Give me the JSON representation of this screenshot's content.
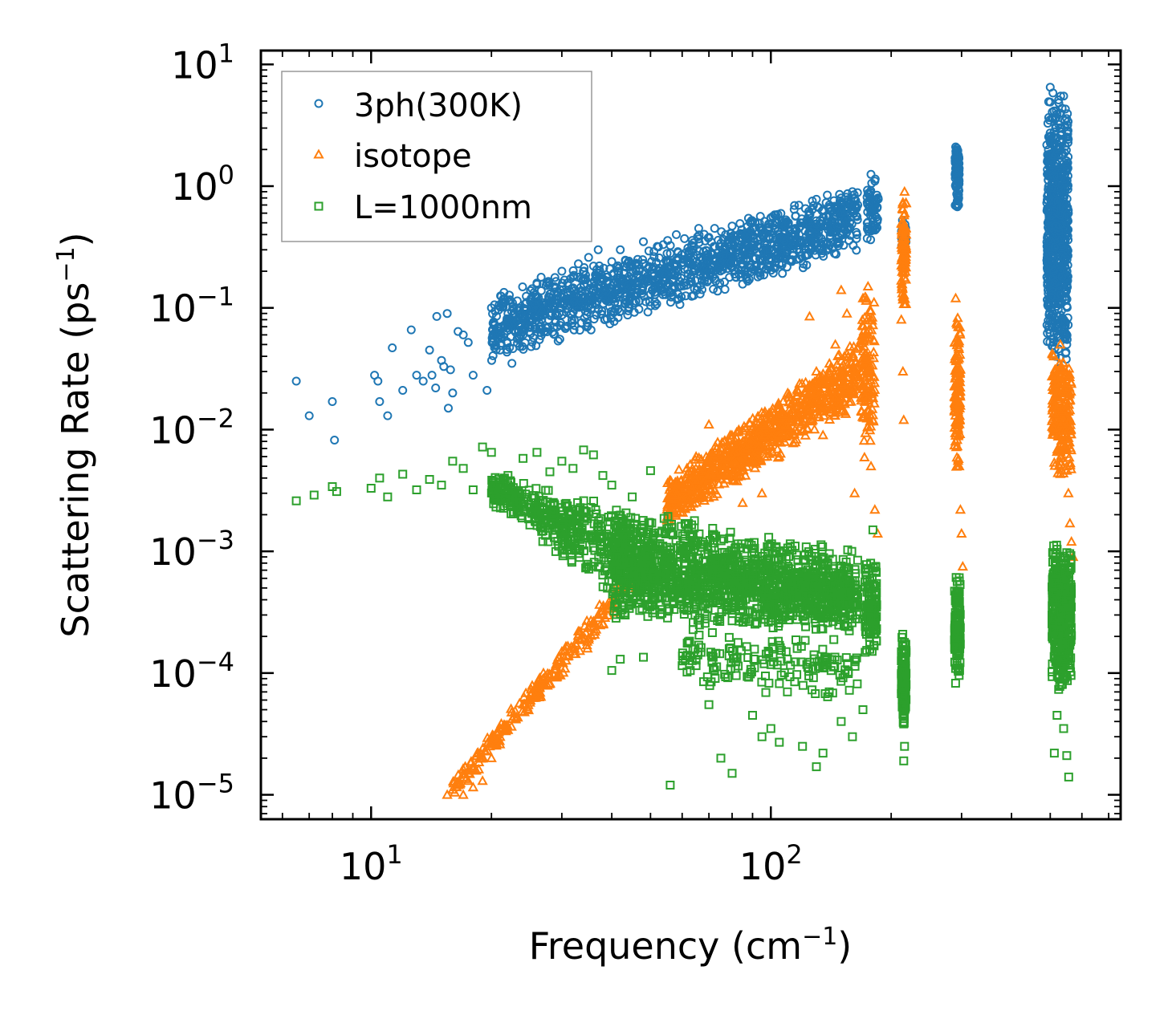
{
  "chart_data": {
    "type": "scatter",
    "title": "",
    "xscale": "log",
    "yscale": "log",
    "xlim": [
      5.3,
      750
    ],
    "ylim": [
      6.3e-06,
      13
    ],
    "xlabel": {
      "text": "Frequency (cm",
      "sup": "−1",
      "close": ")"
    },
    "ylabel": {
      "text": "Scattering Rate (ps",
      "sup": "−1",
      "close": ")"
    },
    "xticks": [
      {
        "value": 10,
        "base": "10",
        "exp": "1"
      },
      {
        "value": 100,
        "base": "10",
        "exp": "2"
      }
    ],
    "yticks": [
      {
        "value": 10,
        "base": "10",
        "exp": "1"
      },
      {
        "value": 1,
        "base": "10",
        "exp": "0"
      },
      {
        "value": 0.1,
        "base": "10",
        "exp": "−1"
      },
      {
        "value": 0.01,
        "base": "10",
        "exp": "−2"
      },
      {
        "value": 0.001,
        "base": "10",
        "exp": "−3"
      },
      {
        "value": 0.0001,
        "base": "10",
        "exp": "−4"
      },
      {
        "value": 1e-05,
        "base": "10",
        "exp": "−5"
      }
    ],
    "legend_position": "top-left",
    "series": [
      {
        "name": "3ph(300K)",
        "marker": "circle",
        "color": "#1f77b4",
        "points": [
          [
            6.5,
            0.025
          ],
          [
            7,
            0.013
          ],
          [
            8,
            0.017
          ],
          [
            8.1,
            0.0082
          ],
          [
            10.2,
            0.028
          ],
          [
            10.4,
            0.025
          ],
          [
            10.5,
            0.017
          ],
          [
            11,
            0.013
          ],
          [
            11.3,
            0.047
          ],
          [
            12,
            0.021
          ],
          [
            12.6,
            0.066
          ],
          [
            13,
            0.028
          ],
          [
            13.5,
            0.025
          ],
          [
            14,
            0.045
          ],
          [
            14.2,
            0.028
          ],
          [
            14.5,
            0.022
          ],
          [
            14.6,
            0.085
          ],
          [
            15,
            0.037
          ],
          [
            15.2,
            0.033
          ],
          [
            15.5,
            0.09
          ],
          [
            15.6,
            0.015
          ],
          [
            15.8,
            0.031
          ],
          [
            16,
            0.02
          ],
          [
            16.5,
            0.064
          ],
          [
            17,
            0.06
          ],
          [
            17.5,
            0.052
          ],
          [
            18,
            0.028
          ],
          [
            19.5,
            0.021
          ],
          [
            20,
            0.1
          ],
          [
            20.5,
            0.06
          ],
          [
            21,
            0.045
          ],
          [
            21.5,
            0.134
          ],
          [
            22,
            0.074
          ],
          [
            22.5,
            0.035
          ],
          [
            23,
            0.063
          ],
          [
            24,
            0.06
          ],
          [
            25,
            0.078
          ],
          [
            26,
            0.16
          ],
          [
            27,
            0.095
          ],
          [
            28,
            0.13
          ],
          [
            29,
            0.165
          ],
          [
            30,
            0.2
          ],
          [
            31,
            0.16
          ],
          [
            32,
            0.18
          ],
          [
            33,
            0.23
          ],
          [
            34,
            0.12
          ],
          [
            35,
            0.26
          ],
          [
            36,
            0.14
          ],
          [
            37,
            0.3
          ],
          [
            38,
            0.17
          ],
          [
            40,
            0.24
          ],
          [
            42,
            0.3
          ],
          [
            45,
            0.22
          ],
          [
            48,
            0.35
          ],
          [
            50,
            0.13
          ],
          [
            52,
            0.32
          ],
          [
            55,
            0.28
          ],
          [
            58,
            0.4
          ],
          [
            62,
            0.31
          ],
          [
            66,
            0.45
          ],
          [
            70,
            0.38
          ],
          [
            75,
            0.34
          ],
          [
            80,
            0.47
          ],
          [
            85,
            0.4
          ],
          [
            90,
            0.51
          ],
          [
            95,
            0.43
          ],
          [
            100,
            0.55
          ],
          [
            105,
            0.4
          ],
          [
            110,
            0.3
          ],
          [
            115,
            0.45
          ],
          [
            120,
            0.5
          ],
          [
            125,
            0.6
          ],
          [
            130,
            0.78
          ],
          [
            135,
            0.55
          ],
          [
            140,
            0.7
          ],
          [
            145,
            0.65
          ],
          [
            150,
            0.8
          ],
          [
            155,
            0.62
          ],
          [
            160,
            0.9
          ],
          [
            165,
            0.7
          ],
          [
            178,
            1.25
          ],
          [
            180,
            0.55
          ],
          [
            182,
            1.1
          ],
          [
            213,
            0.38
          ],
          [
            215,
            0.32
          ],
          [
            290,
            2.1
          ],
          [
            295,
            0.7
          ],
          [
            296,
            1.4
          ],
          [
            500,
            6.5
          ],
          [
            510,
            0.2
          ],
          [
            515,
            0.04
          ],
          [
            520,
            2
          ],
          [
            540,
            5.5
          ],
          [
            550,
            0.05
          ],
          [
            555,
            0.6
          ]
        ],
        "clusters": [
          {
            "x": [
              20,
              165
            ],
            "ymin_at_x0": 0.035,
            "ymax_at_x0": 0.14,
            "ymin_at_x1": 0.28,
            "ymax_at_x1": 1.05,
            "n": 1400
          },
          {
            "x": [
              174,
              186
            ],
            "ymin_at_x0": 0.32,
            "ymax_at_x0": 1.3,
            "ymin_at_x1": 0.32,
            "ymax_at_x1": 1.3,
            "n": 60
          },
          {
            "x": [
              212,
              218
            ],
            "ymin_at_x0": 0.28,
            "ymax_at_x0": 0.55,
            "ymin_at_x1": 0.28,
            "ymax_at_x1": 0.55,
            "n": 25
          },
          {
            "x": [
              289,
              296
            ],
            "ymin_at_x0": 0.6,
            "ymax_at_x0": 2.5,
            "ymin_at_x1": 0.6,
            "ymax_at_x1": 2.5,
            "n": 90
          },
          {
            "x": [
              490,
              555
            ],
            "ymin_at_x0": 0.03,
            "ymax_at_x0": 6.5,
            "ymin_at_x1": 0.03,
            "ymax_at_x1": 6.5,
            "n": 700
          }
        ]
      },
      {
        "name": "isotope",
        "marker": "triangle",
        "color": "#ff7f0e",
        "points": [
          [
            15.5,
            1e-05
          ],
          [
            16,
            1.1e-05
          ],
          [
            16.5,
            1.2e-05
          ],
          [
            17,
            1e-05
          ],
          [
            17.5,
            1.3e-05
          ],
          [
            18,
            1.15e-05
          ],
          [
            19,
            1.3e-05
          ],
          [
            20,
            2e-05
          ],
          [
            21,
            2.6e-05
          ],
          [
            22,
            3.4e-05
          ],
          [
            23,
            4.2e-05
          ],
          [
            25,
            6e-05
          ],
          [
            27,
            9e-05
          ],
          [
            30,
            0.00015
          ],
          [
            33,
            0.00022
          ],
          [
            37,
            0.0003
          ],
          [
            40,
            0.00038
          ],
          [
            45,
            0.00055
          ],
          [
            55,
            0.0018
          ],
          [
            60,
            0.0035
          ],
          [
            65,
            0.006
          ],
          [
            70,
            0.011
          ],
          [
            75,
            0.007
          ],
          [
            78,
            0.0045
          ],
          [
            85,
            0.0025
          ],
          [
            95,
            0.003
          ],
          [
            105,
            0.006
          ],
          [
            110,
            0.009
          ],
          [
            120,
            0.018
          ],
          [
            125,
            0.085
          ],
          [
            130,
            0.03
          ],
          [
            135,
            0.009
          ],
          [
            140,
            0.025
          ],
          [
            145,
            0.05
          ],
          [
            150,
            0.14
          ],
          [
            155,
            0.09
          ],
          [
            160,
            0.04
          ],
          [
            162,
            0.003
          ],
          [
            170,
            0.12
          ],
          [
            175,
            0.15
          ],
          [
            178,
            0.005
          ],
          [
            180,
            0.012
          ],
          [
            182,
            0.0022
          ],
          [
            185,
            0.0014
          ],
          [
            212,
            0.08
          ],
          [
            214,
            0.03
          ],
          [
            215,
            0.012
          ],
          [
            216,
            0.9
          ],
          [
            218,
            0.4
          ],
          [
            290,
            0.12
          ],
          [
            292,
            0.03
          ],
          [
            294,
            0.01
          ],
          [
            296,
            0.005
          ],
          [
            298,
            0.0022
          ],
          [
            300,
            0.0014
          ],
          [
            302,
            0.00075
          ],
          [
            510,
            0.04
          ],
          [
            520,
            0.02
          ],
          [
            530,
            0.05
          ],
          [
            540,
            0.012
          ],
          [
            550,
            0.005
          ],
          [
            555,
            0.003
          ],
          [
            560,
            0.0017
          ],
          [
            565,
            0.0012
          ],
          [
            570,
            0.0009
          ]
        ],
        "clusters": [
          {
            "x": [
              16,
              50
            ],
            "ymin_at_x0": 9e-06,
            "ymax_at_x0": 1.4e-05,
            "ymin_at_x1": 0.0006,
            "ymax_at_x1": 0.0012,
            "n": 260
          },
          {
            "x": [
              55,
              165
            ],
            "ymin_at_x0": 0.0015,
            "ymax_at_x0": 0.004,
            "ymin_at_x1": 0.015,
            "ymax_at_x1": 0.06,
            "n": 900
          },
          {
            "x": [
              168,
              182
            ],
            "ymin_at_x0": 0.005,
            "ymax_at_x0": 0.15,
            "ymin_at_x1": 0.005,
            "ymax_at_x1": 0.15,
            "n": 120
          },
          {
            "x": [
              212,
              218
            ],
            "ymin_at_x0": 0.08,
            "ymax_at_x0": 0.9,
            "ymin_at_x1": 0.08,
            "ymax_at_x1": 0.9,
            "n": 90
          },
          {
            "x": [
              288,
              298
            ],
            "ymin_at_x0": 0.004,
            "ymax_at_x0": 0.12,
            "ymin_at_x1": 0.004,
            "ymax_at_x1": 0.12,
            "n": 130
          },
          {
            "x": [
              505,
              565
            ],
            "ymin_at_x0": 0.004,
            "ymax_at_x0": 0.05,
            "ymin_at_x1": 0.004,
            "ymax_at_x1": 0.05,
            "n": 220
          }
        ]
      },
      {
        "name": "L=1000nm",
        "marker": "square",
        "color": "#2ca02c",
        "points": [
          [
            6.5,
            0.0026
          ],
          [
            7.2,
            0.0029
          ],
          [
            8,
            0.0034
          ],
          [
            8.2,
            0.0031
          ],
          [
            10,
            0.0033
          ],
          [
            10.5,
            0.004
          ],
          [
            11,
            0.0028
          ],
          [
            12,
            0.0043
          ],
          [
            13,
            0.0032
          ],
          [
            14,
            0.0039
          ],
          [
            15,
            0.0035
          ],
          [
            16,
            0.0055
          ],
          [
            17,
            0.0048
          ],
          [
            18,
            0.0032
          ],
          [
            19,
            0.0072
          ],
          [
            20,
            0.0065
          ],
          [
            22,
            0.0042
          ],
          [
            24,
            0.0058
          ],
          [
            26,
            0.0065
          ],
          [
            28,
            0.0045
          ],
          [
            30,
            0.0055
          ],
          [
            32,
            0.0048
          ],
          [
            34,
            0.0068
          ],
          [
            36,
            0.0062
          ],
          [
            38,
            0.0042
          ],
          [
            40,
            0.0035
          ],
          [
            45,
            0.0028
          ],
          [
            50,
            0.0046
          ],
          [
            40,
            0.000105
          ],
          [
            42,
            0.00013
          ],
          [
            48,
            0.000135
          ],
          [
            56,
            1.2e-05
          ],
          [
            60,
            0.000115
          ],
          [
            65,
            0.000115
          ],
          [
            70,
            5.5e-05
          ],
          [
            75,
            2e-05
          ],
          [
            80,
            1.5e-05
          ],
          [
            90,
            4.5e-05
          ],
          [
            95,
            3e-05
          ],
          [
            100,
            3.5e-05
          ],
          [
            105,
            2.7e-05
          ],
          [
            110,
            7e-05
          ],
          [
            120,
            2.5e-05
          ],
          [
            130,
            1.7e-05
          ],
          [
            135,
            2.2e-05
          ],
          [
            140,
            7e-05
          ],
          [
            150,
            4e-05
          ],
          [
            160,
            3e-05
          ],
          [
            170,
            5e-05
          ],
          [
            180,
            0.0015
          ],
          [
            215,
            1.9e-05
          ],
          [
            216,
            2.5e-05
          ],
          [
            512,
            2.2e-05
          ],
          [
            550,
            2.1e-05
          ],
          [
            556,
            1.4e-05
          ],
          [
            520,
            4.5e-05
          ],
          [
            540,
            3.5e-05
          ]
        ],
        "clusters": [
          {
            "x": [
              20,
              50
            ],
            "ymin_at_x0": 0.0024,
            "ymax_at_x0": 0.0045,
            "ymin_at_x1": 0.00025,
            "ymax_at_x1": 0.002,
            "n": 500
          },
          {
            "x": [
              40,
              165
            ],
            "ymin_at_x0": 0.00025,
            "ymax_at_x0": 0.0025,
            "ymin_at_x1": 0.0002,
            "ymax_at_x1": 0.001,
            "n": 1500
          },
          {
            "x": [
              60,
              165
            ],
            "ymin_at_x0": 8e-05,
            "ymax_at_x0": 0.00025,
            "ymin_at_x1": 5e-05,
            "ymax_at_x1": 0.0002,
            "n": 160
          },
          {
            "x": [
              172,
              184
            ],
            "ymin_at_x0": 0.00013,
            "ymax_at_x0": 0.0009,
            "ymin_at_x1": 0.00013,
            "ymax_at_x1": 0.0009,
            "n": 130
          },
          {
            "x": [
              212,
              218
            ],
            "ymin_at_x0": 3.5e-05,
            "ymax_at_x0": 0.00022,
            "ymin_at_x1": 3.5e-05,
            "ymax_at_x1": 0.00022,
            "n": 130
          },
          {
            "x": [
              288,
              298
            ],
            "ymin_at_x0": 8e-05,
            "ymax_at_x0": 0.0007,
            "ymin_at_x1": 8e-05,
            "ymax_at_x1": 0.0007,
            "n": 130
          },
          {
            "x": [
              505,
              565
            ],
            "ymin_at_x0": 7e-05,
            "ymax_at_x0": 0.0013,
            "ymin_at_x1": 7e-05,
            "ymax_at_x1": 0.0013,
            "n": 450
          }
        ]
      }
    ]
  }
}
